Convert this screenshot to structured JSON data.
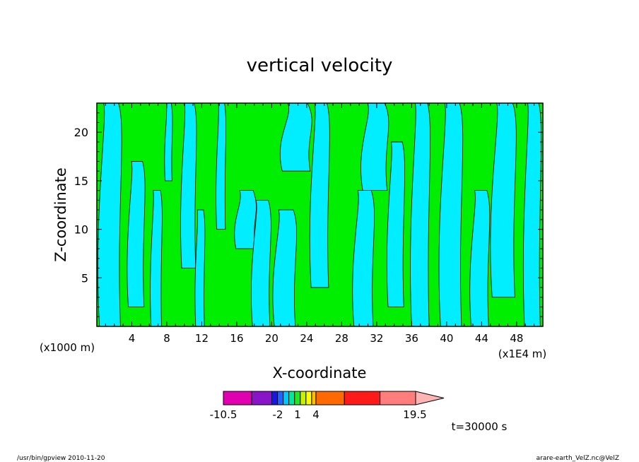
{
  "chart_data": {
    "type": "heatmap",
    "title": "vertical velocity",
    "xlabel": "X-coordinate",
    "ylabel": "Z-coordinate",
    "x_unit": "(x1E4 m)",
    "y_unit": "(x1000 m)",
    "xlim": [
      0,
      51
    ],
    "ylim": [
      0,
      23
    ],
    "x_ticks": [
      4,
      8,
      12,
      16,
      20,
      24,
      28,
      32,
      36,
      40,
      44,
      48
    ],
    "y_ticks": [
      5,
      10,
      15,
      20
    ],
    "colorbar": {
      "levels": [
        -10.5,
        -2,
        1,
        4,
        19.5
      ],
      "tick_labels": [
        "-10.5",
        "-2",
        "1",
        "4",
        "19.5"
      ],
      "colors": [
        "#e000b0",
        "#8a14c8",
        "#1818e0",
        "#1e64ff",
        "#00c8ff",
        "#00e8a0",
        "#20e820",
        "#c8f000",
        "#ffff00",
        "#ffc000",
        "#ff6a00",
        "#ff1a1a",
        "#ff7d7d",
        "#ffb4b4"
      ],
      "dominant_colors": {
        "negative": "#00eeff",
        "positive": "#00ee00"
      }
    },
    "time_label": "t=30000 s"
  },
  "footer": {
    "left": "/usr/bin/gpview   2010-11-20",
    "right": "arare-earth_VelZ.nc@VelZ"
  }
}
